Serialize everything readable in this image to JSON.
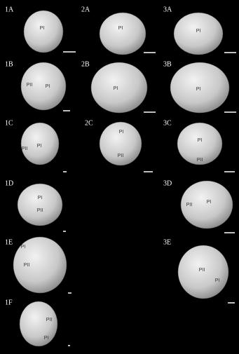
{
  "panels": [
    {
      "id": "1A",
      "labels": [
        "PI"
      ]
    },
    {
      "id": "2A",
      "labels": [
        "PI"
      ]
    },
    {
      "id": "3A",
      "labels": [
        "PI"
      ]
    },
    {
      "id": "1B",
      "labels": [
        "PII",
        "PI"
      ]
    },
    {
      "id": "2B",
      "labels": [
        "PI"
      ]
    },
    {
      "id": "3B",
      "labels": [
        "PI"
      ]
    },
    {
      "id": "1C",
      "labels": [
        "PII",
        "PI"
      ]
    },
    {
      "id": "2C",
      "labels": [
        "PI",
        "PII"
      ]
    },
    {
      "id": "3C",
      "labels": [
        "PI",
        "PII"
      ]
    },
    {
      "id": "1D",
      "labels": [
        "PI",
        "PII"
      ]
    },
    {
      "id": "3D",
      "labels": [
        "PII",
        "PI"
      ]
    },
    {
      "id": "1E",
      "labels": [
        "PI",
        "PII"
      ]
    },
    {
      "id": "3E",
      "labels": [
        "PII",
        "PI"
      ]
    },
    {
      "id": "1F",
      "labels": [
        "PII",
        "PI"
      ]
    }
  ]
}
